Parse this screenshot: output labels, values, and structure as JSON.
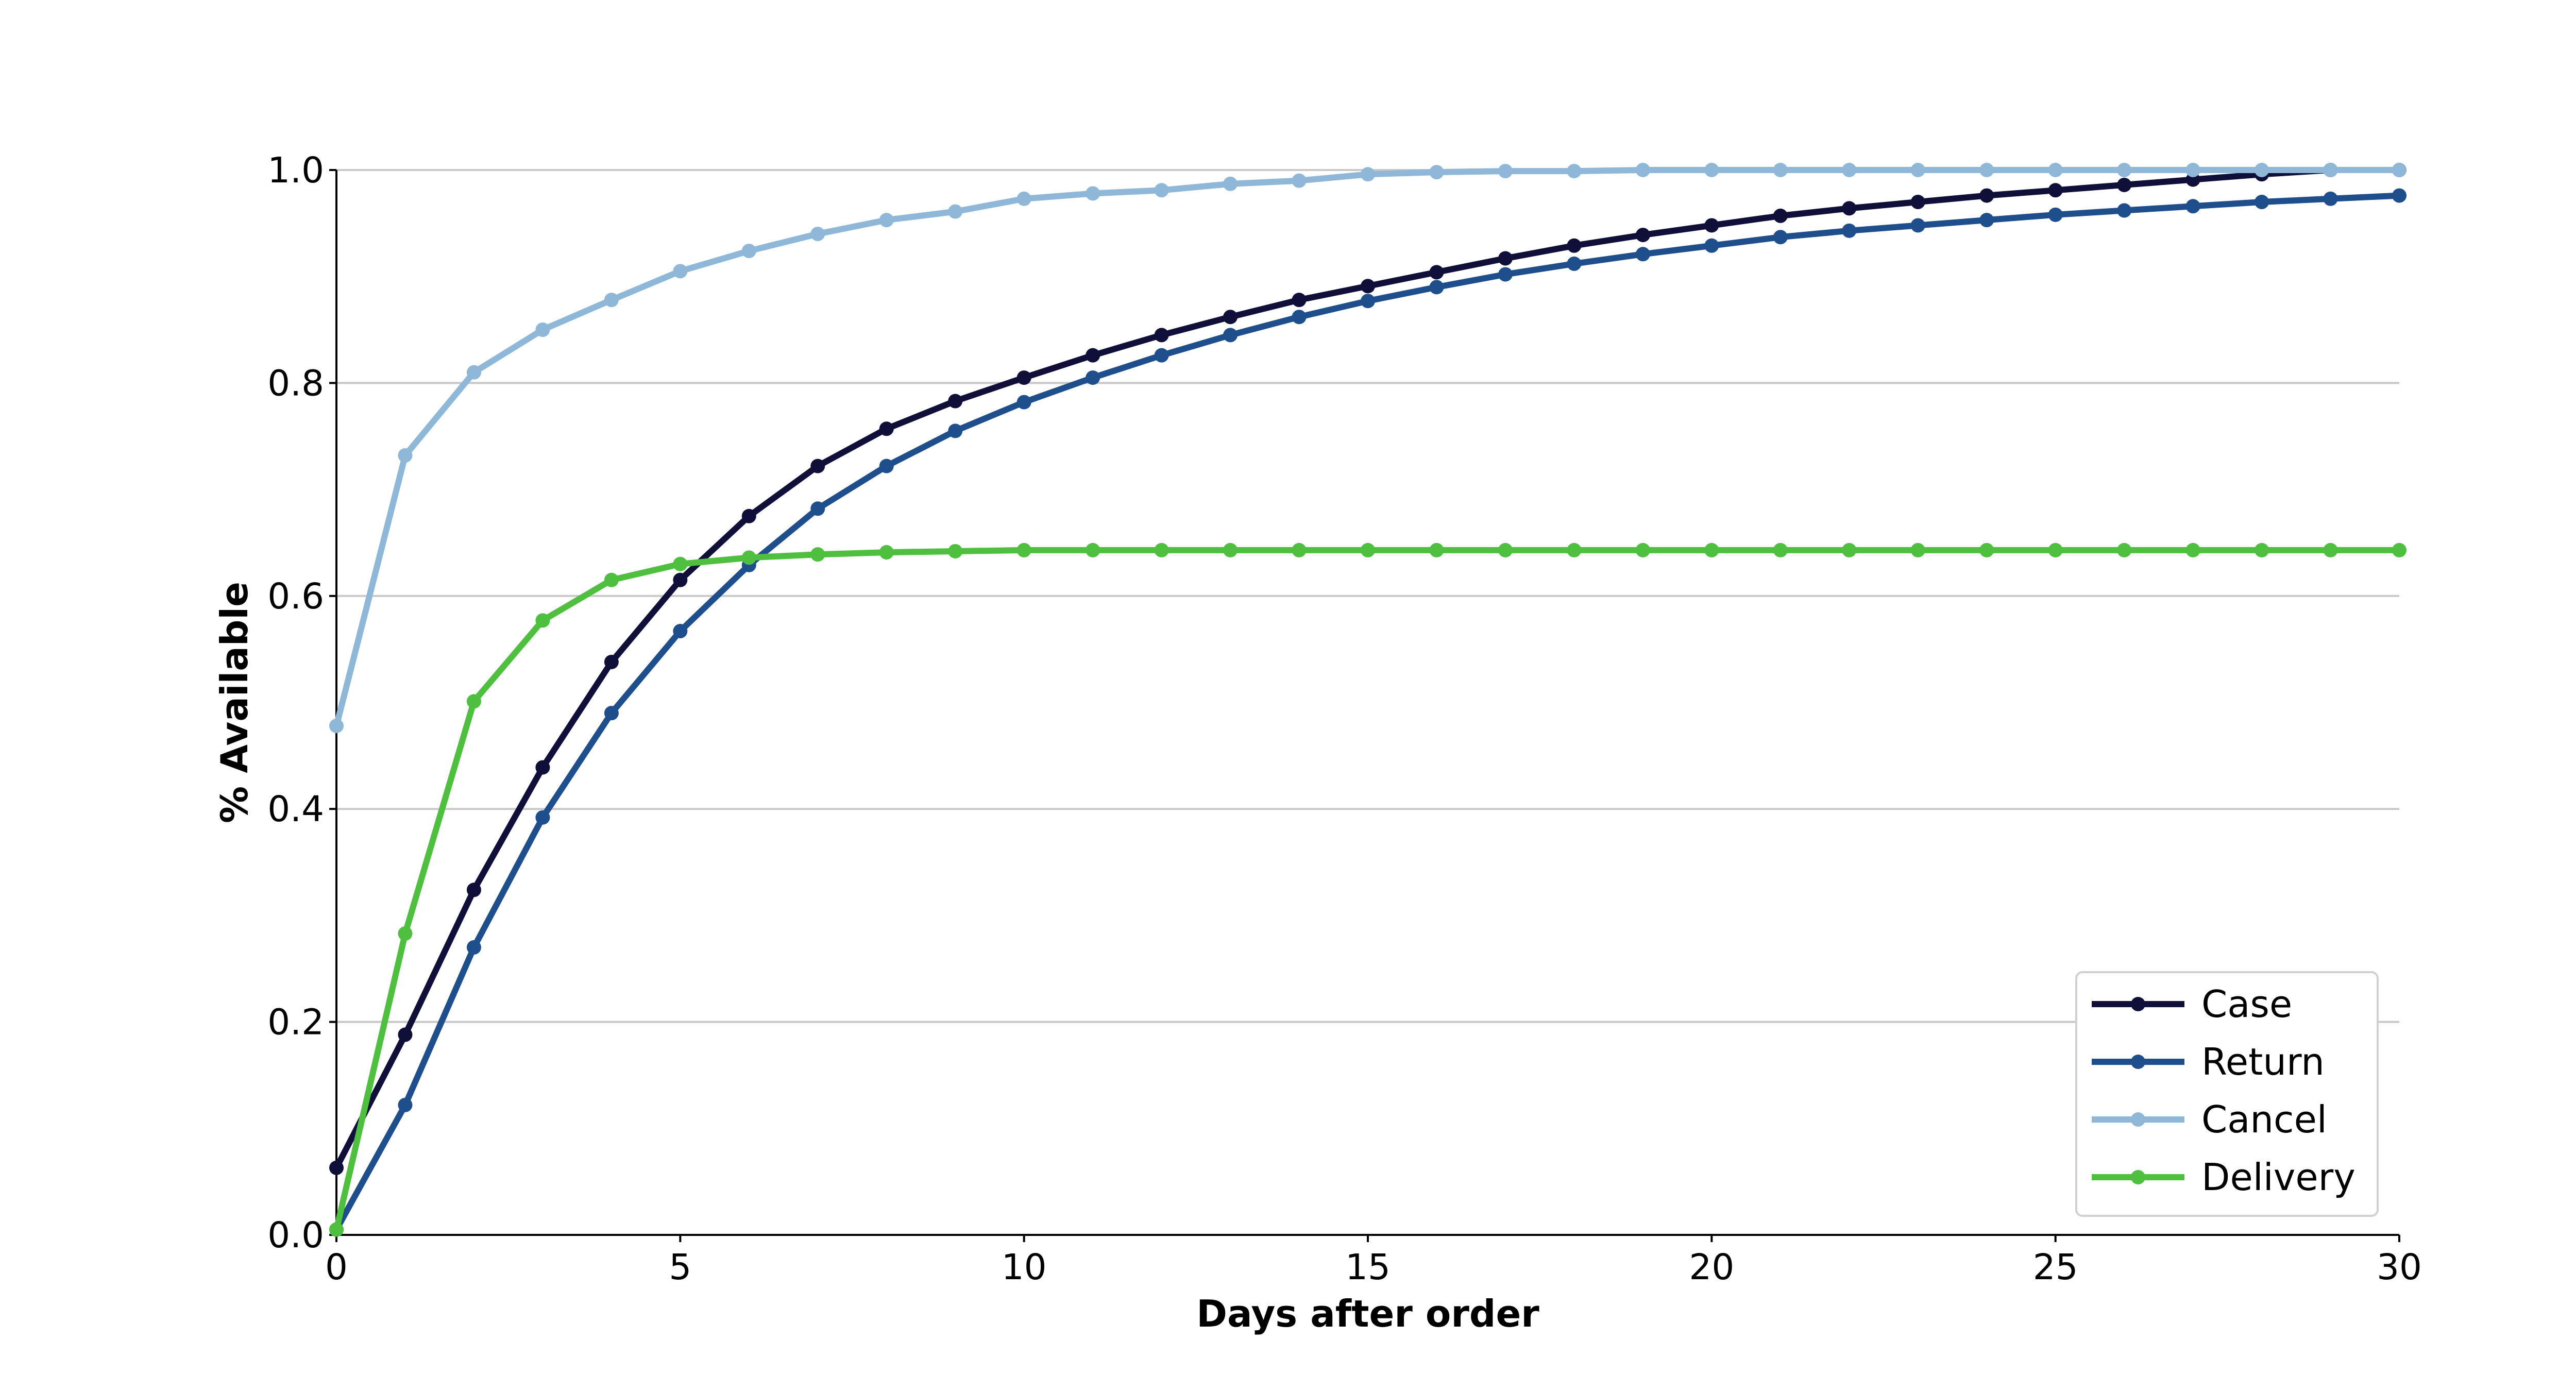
{
  "chart_data": {
    "type": "line",
    "title": "",
    "xlabel": "Days after order",
    "ylabel": "% Available",
    "xlim": [
      0,
      30
    ],
    "ylim": [
      0,
      1.0
    ],
    "x_ticks": [
      0,
      5,
      10,
      15,
      20,
      25,
      30
    ],
    "y_ticks": [
      0.0,
      0.2,
      0.4,
      0.6,
      0.8,
      1.0
    ],
    "x_tick_labels": [
      "0",
      "5",
      "10",
      "15",
      "20",
      "25",
      "30"
    ],
    "y_tick_labels": [
      "0.0",
      "0.2",
      "0.4",
      "0.6",
      "0.8",
      "1.0"
    ],
    "grid": "horizontal",
    "legend_position": "bottom-right",
    "x": [
      0,
      1,
      2,
      3,
      4,
      5,
      6,
      7,
      8,
      9,
      10,
      11,
      12,
      13,
      14,
      15,
      16,
      17,
      18,
      19,
      20,
      21,
      22,
      23,
      24,
      25,
      26,
      27,
      28,
      29,
      30
    ],
    "series": [
      {
        "name": "Case",
        "color": "#0f0f3a",
        "values": [
          0.063,
          0.188,
          0.324,
          0.439,
          0.538,
          0.615,
          0.675,
          0.722,
          0.757,
          0.783,
          0.805,
          0.826,
          0.845,
          0.862,
          0.878,
          0.891,
          0.904,
          0.917,
          0.929,
          0.939,
          0.948,
          0.957,
          0.964,
          0.97,
          0.976,
          0.981,
          0.986,
          0.991,
          0.996,
          1.0,
          1.0
        ]
      },
      {
        "name": "Return",
        "color": "#1f4e8c",
        "values": [
          0.005,
          0.122,
          0.27,
          0.392,
          0.49,
          0.567,
          0.629,
          0.682,
          0.722,
          0.755,
          0.782,
          0.805,
          0.826,
          0.845,
          0.862,
          0.877,
          0.89,
          0.902,
          0.912,
          0.921,
          0.929,
          0.937,
          0.943,
          0.948,
          0.953,
          0.958,
          0.962,
          0.966,
          0.97,
          0.973,
          0.976
        ]
      },
      {
        "name": "Cancel",
        "color": "#8fb8d8",
        "values": [
          0.478,
          0.732,
          0.81,
          0.85,
          0.878,
          0.905,
          0.924,
          0.94,
          0.953,
          0.961,
          0.973,
          0.978,
          0.981,
          0.987,
          0.99,
          0.996,
          0.998,
          0.999,
          0.999,
          1.0,
          1.0,
          1.0,
          1.0,
          1.0,
          1.0,
          1.0,
          1.0,
          1.0,
          1.0,
          1.0,
          1.0
        ]
      },
      {
        "name": "Delivery",
        "color": "#4fbf3f",
        "values": [
          0.005,
          0.283,
          0.501,
          0.577,
          0.615,
          0.63,
          0.636,
          0.639,
          0.641,
          0.642,
          0.643,
          0.643,
          0.643,
          0.643,
          0.643,
          0.643,
          0.643,
          0.643,
          0.643,
          0.643,
          0.643,
          0.643,
          0.643,
          0.643,
          0.643,
          0.643,
          0.643,
          0.643,
          0.643,
          0.643,
          0.643
        ]
      }
    ]
  }
}
